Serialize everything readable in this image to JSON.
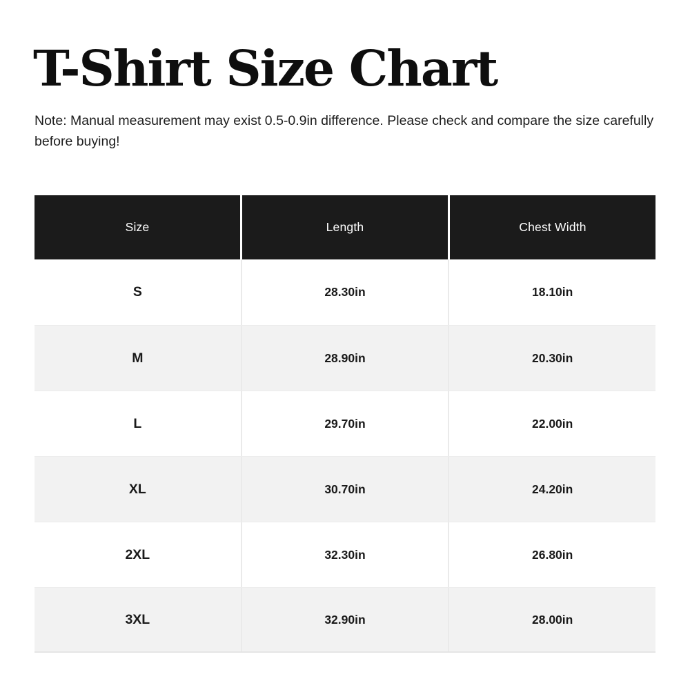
{
  "title": "T-Shirt Size Chart",
  "note": "Note: Manual measurement may exist 0.5-0.9in difference. Please check and compare the size carefully before buying!",
  "colors": {
    "header_bg": "#1b1b1b",
    "header_text": "#ffffff",
    "row_bg": "#ffffff",
    "row_alt_bg": "#f2f2f2",
    "divider": "#eaeaea",
    "text": "#1a1a1a"
  },
  "table": {
    "headers": [
      "Size",
      "Length",
      "Chest Width"
    ],
    "rows": [
      [
        "S",
        "28.30in",
        "18.10in"
      ],
      [
        "M",
        "28.90in",
        "20.30in"
      ],
      [
        "L",
        "29.70in",
        "22.00in"
      ],
      [
        "XL",
        "30.70in",
        "24.20in"
      ],
      [
        "2XL",
        "32.30in",
        "26.80in"
      ],
      [
        "3XL",
        "32.90in",
        "28.00in"
      ]
    ]
  },
  "chart_data": {
    "type": "table",
    "title": "T-Shirt Size Chart",
    "note": "Note: Manual measurement may exist 0.5-0.9in difference. Please check and compare the size carefully before buying!",
    "columns": [
      "Size",
      "Length",
      "Chest Width"
    ],
    "rows": [
      {
        "size": "S",
        "length_in": 28.3,
        "chest_width_in": 18.1
      },
      {
        "size": "M",
        "length_in": 28.9,
        "chest_width_in": 20.3
      },
      {
        "size": "L",
        "length_in": 29.7,
        "chest_width_in": 22.0
      },
      {
        "size": "XL",
        "length_in": 30.7,
        "chest_width_in": 24.2
      },
      {
        "size": "2XL",
        "length_in": 32.3,
        "chest_width_in": 26.8
      },
      {
        "size": "3XL",
        "length_in": 32.9,
        "chest_width_in": 28.0
      }
    ],
    "layout": {
      "header_style": "dark-bar-white-text",
      "row_striping": "white / light-gray alternating",
      "unit": "in"
    }
  }
}
